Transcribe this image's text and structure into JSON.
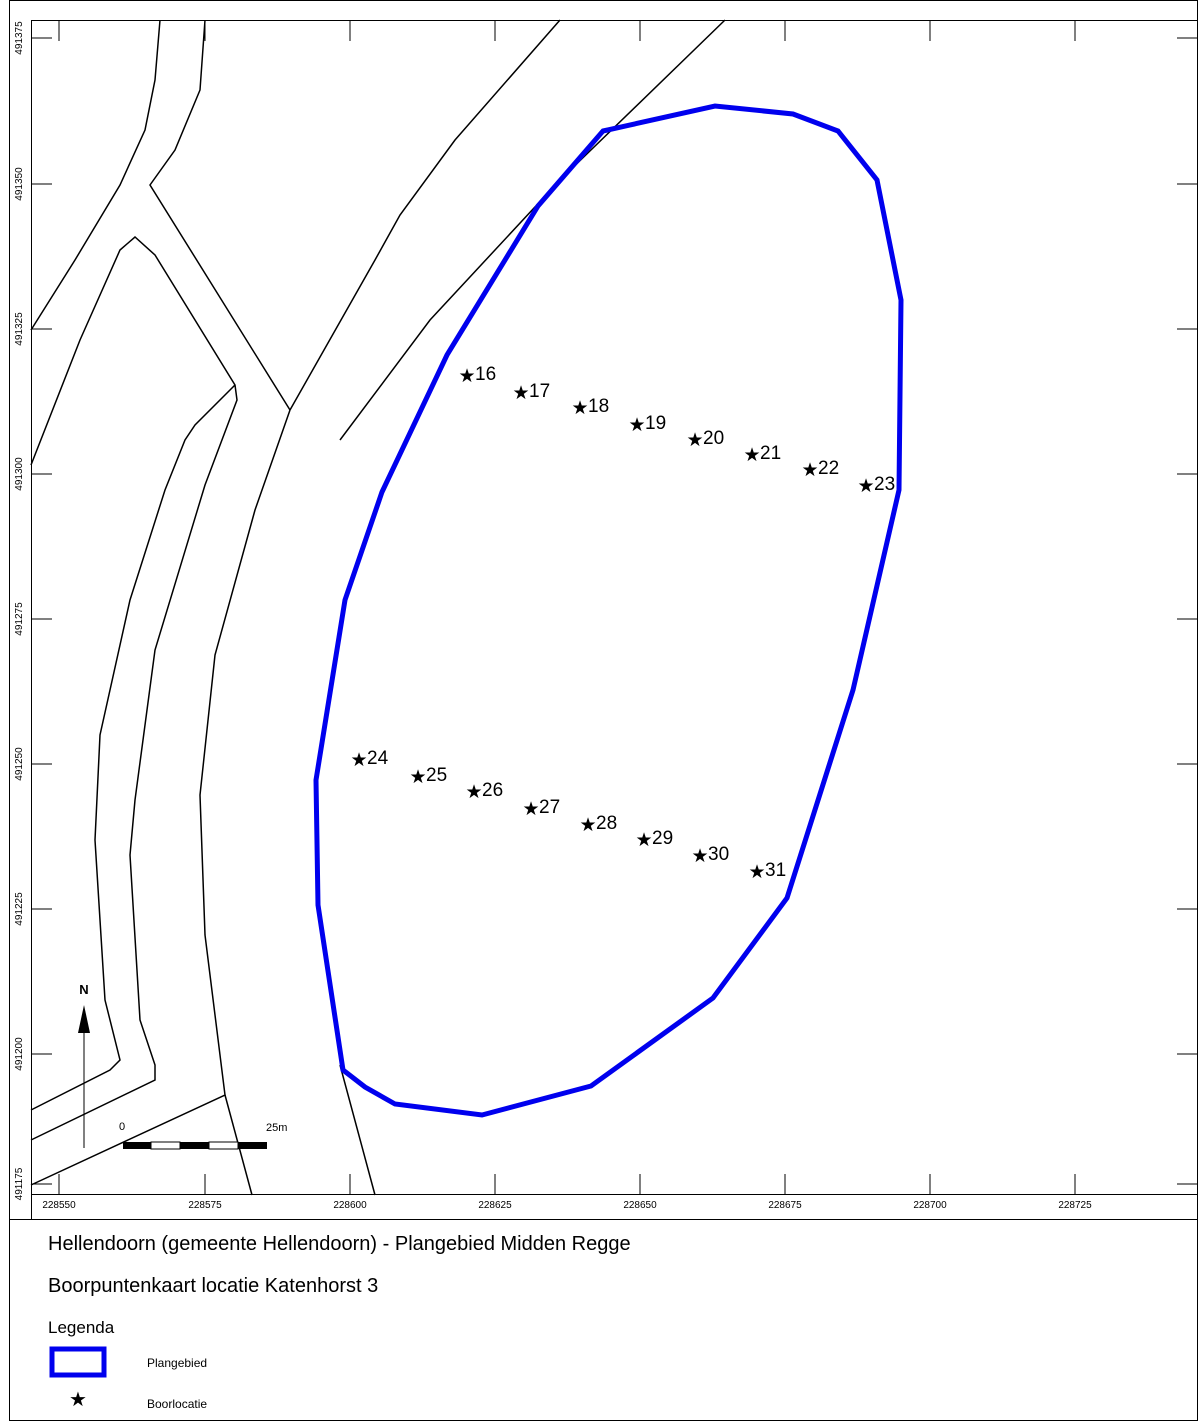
{
  "map": {
    "x_ticks": [
      "228550",
      "228575",
      "228600",
      "228625",
      "228650",
      "228675",
      "228700",
      "228725"
    ],
    "y_ticks": [
      "491375",
      "491350",
      "491325",
      "491300",
      "491275",
      "491250",
      "491225",
      "491200",
      "491175"
    ],
    "north_label": "N",
    "scalebar": {
      "start_label": "0",
      "end_label": "25m"
    },
    "boring_points": [
      {
        "label": "16"
      },
      {
        "label": "17"
      },
      {
        "label": "18"
      },
      {
        "label": "19"
      },
      {
        "label": "20"
      },
      {
        "label": "21"
      },
      {
        "label": "22"
      },
      {
        "label": "23"
      },
      {
        "label": "24"
      },
      {
        "label": "25"
      },
      {
        "label": "26"
      },
      {
        "label": "27"
      },
      {
        "label": "28"
      },
      {
        "label": "29"
      },
      {
        "label": "30"
      },
      {
        "label": "31"
      }
    ],
    "colors": {
      "plangebied": "#0000ee",
      "lines": "#000000"
    }
  },
  "panel": {
    "title1": "Hellendoorn (gemeente Hellendoorn) - Plangebied Midden Regge",
    "title2": "Boorpuntenkaart locatie Katenhorst 3",
    "legend_heading": "Legenda",
    "legend_items": [
      {
        "label": "Plangebied",
        "symbol": "blue-rectangle"
      },
      {
        "label": "Boorlocatie",
        "symbol": "star-icon"
      }
    ]
  }
}
